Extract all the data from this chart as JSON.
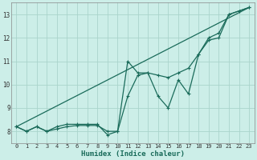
{
  "xlabel": "Humidex (Indice chaleur)",
  "ylabel": "",
  "bg_color": "#cceee8",
  "grid_color": "#aad4cc",
  "line_color": "#1a6b5a",
  "xlim": [
    -0.5,
    23.5
  ],
  "ylim": [
    7.5,
    13.5
  ],
  "xticks": [
    0,
    1,
    2,
    3,
    4,
    5,
    6,
    7,
    8,
    9,
    10,
    11,
    12,
    13,
    14,
    15,
    16,
    17,
    18,
    19,
    20,
    21,
    22,
    23
  ],
  "yticks": [
    8,
    9,
    10,
    11,
    12,
    13
  ],
  "series": [
    {
      "x": [
        0,
        1,
        2,
        3,
        4,
        5,
        6,
        7,
        8,
        9,
        10,
        11,
        12,
        13,
        14,
        15,
        16,
        17,
        18,
        19,
        20,
        21,
        22,
        23
      ],
      "y": [
        8.2,
        8.0,
        8.2,
        8.0,
        8.2,
        8.3,
        8.3,
        8.3,
        8.3,
        7.85,
        8.0,
        11.0,
        10.5,
        10.5,
        9.5,
        9.0,
        10.2,
        9.6,
        11.3,
        11.9,
        12.0,
        13.0,
        13.15,
        13.3
      ]
    },
    {
      "x": [
        0,
        1,
        2,
        3,
        4,
        5,
        6,
        7,
        8,
        9,
        10,
        11,
        12,
        13,
        14,
        15,
        16,
        17,
        18,
        19,
        20,
        21,
        22,
        23
      ],
      "y": [
        8.2,
        8.0,
        8.2,
        8.0,
        8.1,
        8.2,
        8.25,
        8.25,
        8.25,
        8.0,
        8.0,
        9.5,
        10.4,
        10.5,
        10.4,
        10.3,
        10.5,
        10.7,
        11.3,
        12.0,
        12.2,
        13.0,
        13.15,
        13.3
      ]
    },
    {
      "x": [
        0,
        23
      ],
      "y": [
        8.2,
        13.3
      ]
    }
  ]
}
